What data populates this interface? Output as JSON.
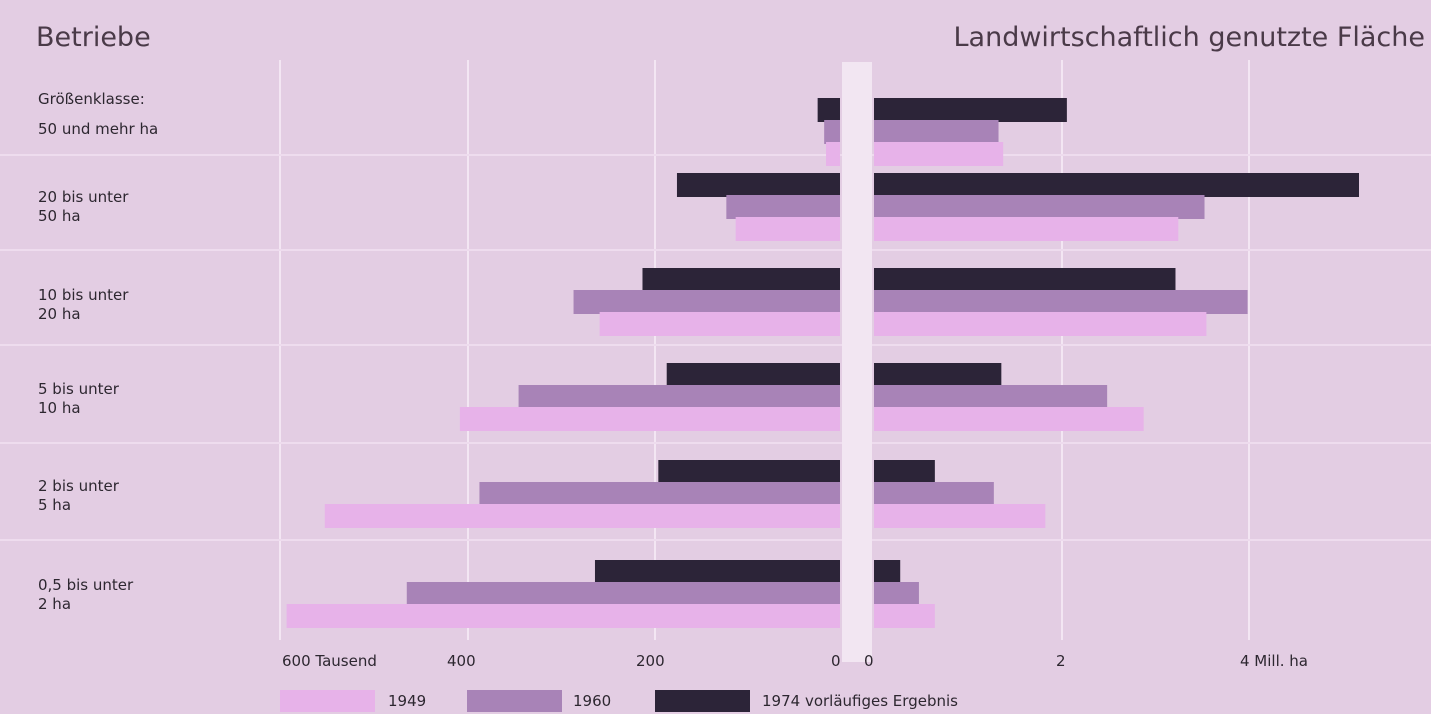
{
  "chart_data": {
    "type": "bar",
    "orientation": "horizontal-butterfly",
    "left_title": "Betriebe",
    "right_title": "Landwirtschaftlich genutzte Fläche",
    "size_heading": "Größenklasse:",
    "categories": [
      "50 und  mehr ha",
      "20 bis unter\n50 ha",
      "10 bis unter\n20 ha",
      "5 bis unter\n10 ha",
      "2 bis unter\n5 ha",
      "0,5 bis unter\n2 ha"
    ],
    "left_ticks": [
      "600 Tausend",
      "400",
      "200",
      "0"
    ],
    "right_ticks": [
      "0",
      "2",
      "4 Mill. ha"
    ],
    "left_xlim": [
      0,
      600
    ],
    "right_xlim": [
      0,
      5.5
    ],
    "grid": true,
    "legend_position": "bottom",
    "series": [
      {
        "name": "1949",
        "color": "#e7b2e9",
        "left_values": [
          15,
          112,
          258,
          408,
          553,
          594
        ],
        "right_values": [
          1.38,
          3.25,
          3.55,
          2.88,
          1.83,
          0.65
        ]
      },
      {
        "name": "1960",
        "color": "#a883b7",
        "left_values": [
          17,
          122,
          286,
          345,
          387,
          465
        ],
        "right_values": [
          1.33,
          3.53,
          3.99,
          2.49,
          1.28,
          0.48
        ]
      },
      {
        "name": "1974 vorläufiges Ergebnis",
        "color": "#2c2438",
        "left_values": [
          24,
          175,
          212,
          186,
          195,
          263
        ],
        "right_values": [
          2.06,
          5.18,
          3.22,
          1.36,
          0.65,
          0.28
        ]
      }
    ]
  },
  "legend": {
    "items": [
      {
        "label": "1949",
        "color": "#e7b2e9"
      },
      {
        "label": "1960",
        "color": "#a883b7"
      },
      {
        "label": "1974  vorläufiges Ergebnis",
        "color": "#2c2438"
      }
    ]
  }
}
